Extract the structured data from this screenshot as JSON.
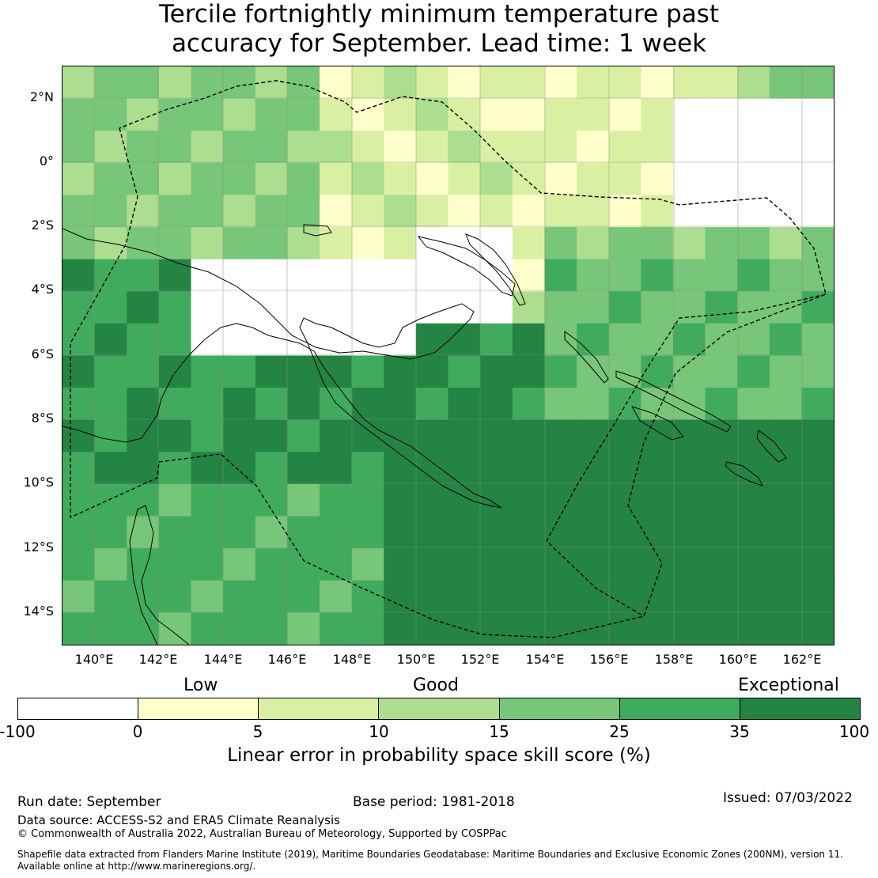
{
  "title": {
    "line1": "Tercile fortnightly minimum temperature past",
    "line2": "accuracy for September. Lead time: 1 week"
  },
  "axes": {
    "lat_labels": [
      "2°N",
      "0°",
      "2°S",
      "4°S",
      "6°S",
      "8°S",
      "10°S",
      "12°S",
      "14°S"
    ],
    "lon_labels": [
      "140°E",
      "142°E",
      "144°E",
      "146°E",
      "148°E",
      "150°E",
      "152°E",
      "154°E",
      "156°E",
      "158°E",
      "160°E",
      "162°E"
    ],
    "lon_range": [
      139.0,
      163.0
    ],
    "lat_range": [
      -15.0,
      3.0
    ]
  },
  "legend": {
    "categories": [
      "Low",
      "Good",
      "Exceptional"
    ],
    "ticks": [
      "-100",
      "0",
      "5",
      "10",
      "15",
      "25",
      "35",
      "100"
    ],
    "colors": [
      "#ffffff",
      "#ffffcc",
      "#d9f0a3",
      "#addd8e",
      "#78c679",
      "#41ab5d",
      "#238443"
    ],
    "label": "Linear error in probability space skill score (%)"
  },
  "footer": {
    "run_date": "Run date: September",
    "base_period": "Base period: 1981-2018",
    "issued": "Issued: 07/03/2022",
    "data_source": "Data source: ACCESS-S2 and ERA5 Climate Reanalysis",
    "copyright": "© Commonwealth of Australia 2022, Australian Bureau of Meteorology, Supported by COSPPac",
    "shapefile_line1": "Shapefile data extracted from Flanders Marine Institute (2019), Maritime Boundaries Geodatabase: Maritime Boundaries and Exclusive Economic Zones (200NM), version 11.",
    "shapefile_line2": "Available online at http://www.marineregions.org/."
  }
}
